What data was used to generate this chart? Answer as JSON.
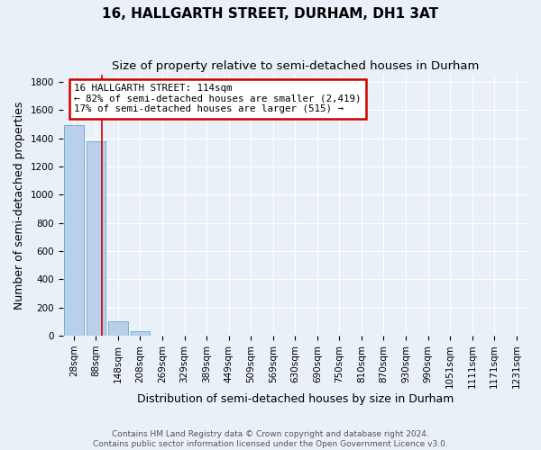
{
  "title_line1": "16, HALLGARTH STREET, DURHAM, DH1 3AT",
  "title_line2": "Size of property relative to semi-detached houses in Durham",
  "xlabel": "Distribution of semi-detached houses by size in Durham",
  "ylabel": "Number of semi-detached properties",
  "bar_labels": [
    "28sqm",
    "88sqm",
    "148sqm",
    "208sqm",
    "269sqm",
    "329sqm",
    "389sqm",
    "449sqm",
    "509sqm",
    "569sqm",
    "630sqm",
    "690sqm",
    "750sqm",
    "810sqm",
    "870sqm",
    "930sqm",
    "990sqm",
    "1051sqm",
    "1111sqm",
    "1171sqm",
    "1231sqm"
  ],
  "bar_values": [
    1490,
    1380,
    100,
    30,
    0,
    0,
    0,
    0,
    0,
    0,
    0,
    0,
    0,
    0,
    0,
    0,
    0,
    0,
    0,
    0,
    0
  ],
  "bar_color": "#b8d0ea",
  "bar_edge_color": "#7aaed4",
  "property_line_x": 1.27,
  "property_line_color": "#cc0000",
  "annotation_text": "16 HALLGARTH STREET: 114sqm\n← 82% of semi-detached houses are smaller (2,419)\n17% of semi-detached houses are larger (515) →",
  "annotation_box_color": "#ffffff",
  "annotation_box_edge": "#cc0000",
  "ylim": [
    0,
    1850
  ],
  "yticks": [
    0,
    200,
    400,
    600,
    800,
    1000,
    1200,
    1400,
    1600,
    1800
  ],
  "footer_line1": "Contains HM Land Registry data © Crown copyright and database right 2024.",
  "footer_line2": "Contains public sector information licensed under the Open Government Licence v3.0.",
  "background_color": "#eaf0f8",
  "grid_color": "#ffffff",
  "title_fontsize": 11,
  "subtitle_fontsize": 9.5,
  "axis_label_fontsize": 9,
  "tick_fontsize": 7.5,
  "annotation_fontsize": 7.8,
  "footer_fontsize": 6.5
}
